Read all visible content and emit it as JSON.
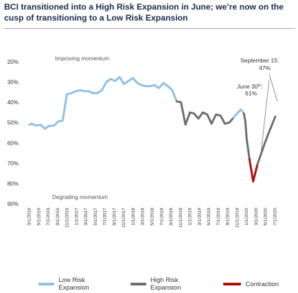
{
  "title": "BCI transitioned into a High Risk Expansion in June; we’re now on the cusp of transitioning to a Low Risk Expansion",
  "chart_data": {
    "type": "line",
    "y_inverted": true,
    "ylim": [
      20,
      90
    ],
    "ytick_labels": [
      "20%",
      "30%",
      "40%",
      "50%",
      "60%",
      "70%",
      "80%",
      "90%"
    ],
    "yticks": [
      20,
      30,
      40,
      50,
      60,
      70,
      80,
      90
    ],
    "xtick_labels": [
      "3/1/2016",
      "5/1/2016",
      "7/1/2016",
      "9/1/2016",
      "11/1/2016",
      "1/1/2017",
      "3/1/2017",
      "5/1/2017",
      "7/1/2017",
      "9/1/2017",
      "11/1/2017",
      "1/1/2018",
      "3/1/2018",
      "5/1/2018",
      "7/1/2018",
      "9/1/2018",
      "11/1/2018",
      "1/1/2019",
      "3/1/2019",
      "5/1/2019",
      "7/1/2019",
      "9/1/2019",
      "11/1/2019",
      "1/1/2020",
      "3/1/2020",
      "5/1/2020",
      "7/1/2020"
    ],
    "annotations": {
      "top": "Improving momentum",
      "bottom": "Degrading momentum",
      "june": "June 30th: 61%",
      "june_line1": "June 30",
      "june_sup": "th",
      "june_line1_end": ":",
      "june_line2": "61%",
      "sept_line1": "September 15:",
      "sept_line2": "47%"
    },
    "colors": {
      "low_risk_expansion": "#8fc0e6",
      "high_risk_expansion": "#6e6e6e",
      "contraction": "#b30d0d"
    },
    "series": [
      {
        "name": "Low Risk Expansion",
        "color": "#8fc0e6",
        "points": [
          [
            "2016-01-15",
            51
          ],
          [
            "2016-02-01",
            50.5
          ],
          [
            "2016-03-01",
            51.5
          ],
          [
            "2016-04-01",
            51
          ],
          [
            "2016-05-01",
            53
          ],
          [
            "2016-06-01",
            51.5
          ],
          [
            "2016-07-01",
            51.5
          ],
          [
            "2016-08-01",
            49.5
          ],
          [
            "2016-09-01",
            49
          ],
          [
            "2016-10-01",
            36
          ],
          [
            "2016-11-01",
            35.5
          ],
          [
            "2016-12-01",
            34.5
          ],
          [
            "2017-01-01",
            34
          ],
          [
            "2017-02-01",
            34.5
          ],
          [
            "2017-03-01",
            34.5
          ],
          [
            "2017-04-01",
            35.5
          ],
          [
            "2017-05-01",
            35.5
          ],
          [
            "2017-06-01",
            34
          ],
          [
            "2017-07-01",
            30
          ],
          [
            "2017-08-01",
            28.5
          ],
          [
            "2017-09-01",
            29.5
          ],
          [
            "2017-10-01",
            27.5
          ],
          [
            "2017-11-01",
            31
          ],
          [
            "2017-12-01",
            29.5
          ],
          [
            "2018-01-01",
            28
          ],
          [
            "2018-02-01",
            30.5
          ],
          [
            "2018-03-01",
            31.5
          ],
          [
            "2018-04-01",
            32
          ],
          [
            "2018-05-01",
            32
          ],
          [
            "2018-06-01",
            31.5
          ],
          [
            "2018-07-01",
            33
          ],
          [
            "2018-08-01",
            30.5
          ],
          [
            "2018-09-01",
            32
          ],
          [
            "2018-10-01",
            34
          ],
          [
            "2018-11-01",
            39.5
          ]
        ]
      },
      {
        "name": "High Risk Expansion",
        "color": "#6e6e6e",
        "points": [
          [
            "2018-11-01",
            39.5
          ],
          [
            "2018-12-01",
            40
          ],
          [
            "2019-01-01",
            51
          ],
          [
            "2019-02-01",
            45
          ],
          [
            "2019-03-01",
            45.5
          ],
          [
            "2019-04-01",
            48
          ],
          [
            "2019-05-01",
            45
          ],
          [
            "2019-06-01",
            46
          ],
          [
            "2019-07-01",
            50.5
          ],
          [
            "2019-08-01",
            46
          ],
          [
            "2019-09-01",
            46.5
          ],
          [
            "2019-10-01",
            50.5
          ],
          [
            "2019-11-01",
            50
          ],
          [
            "2019-12-01",
            47.5
          ]
        ]
      },
      {
        "name": "Low Risk Expansion",
        "color": "#8fc0e6",
        "points": [
          [
            "2019-12-01",
            47.5
          ],
          [
            "2020-01-01",
            45
          ],
          [
            "2020-01-20",
            43.5
          ],
          [
            "2020-02-10",
            45.5
          ]
        ]
      },
      {
        "name": "High Risk Expansion",
        "color": "#6e6e6e",
        "points": [
          [
            "2020-02-10",
            45.5
          ],
          [
            "2020-02-20",
            49
          ],
          [
            "2020-03-01",
            58
          ],
          [
            "2020-03-20",
            68
          ]
        ]
      },
      {
        "name": "Contraction",
        "color": "#b30d0d",
        "points": [
          [
            "2020-03-20",
            68
          ],
          [
            "2020-04-15",
            79
          ],
          [
            "2020-05-15",
            70.5
          ]
        ]
      },
      {
        "name": "High Risk Expansion",
        "color": "#6e6e6e",
        "points": [
          [
            "2020-05-15",
            70.5
          ],
          [
            "2020-06-30",
            61
          ],
          [
            "2020-08-01",
            55
          ],
          [
            "2020-09-15",
            47
          ]
        ]
      }
    ],
    "legend": {
      "position": "bottom",
      "items": [
        {
          "label": "Low Risk Expansion",
          "color": "#8fc0e6"
        },
        {
          "label": "High Risk Expansion",
          "color": "#6e6e6e"
        },
        {
          "label": "Contraction",
          "color": "#b30d0d"
        }
      ]
    }
  }
}
